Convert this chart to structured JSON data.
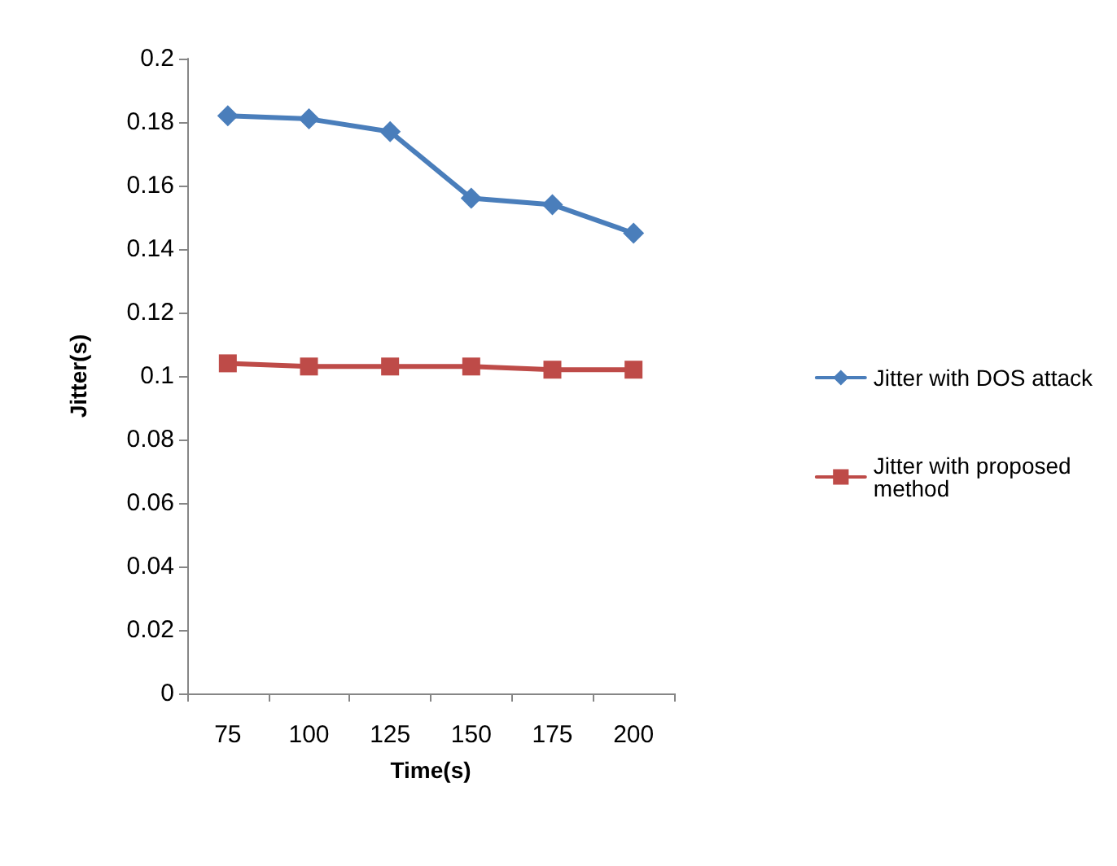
{
  "chart_data": {
    "type": "line",
    "xlabel": "Time(s)",
    "ylabel": "Jitter(s)",
    "categories": [
      "75",
      "100",
      "125",
      "150",
      "175",
      "200"
    ],
    "series": [
      {
        "name": "Jitter with DOS attack",
        "color": "#4a7ebb",
        "marker": "diamond",
        "values": [
          0.182,
          0.181,
          0.177,
          0.156,
          0.154,
          0.145
        ]
      },
      {
        "name": "Jitter with proposed method",
        "color": "#be4b48",
        "marker": "square",
        "values": [
          0.104,
          0.103,
          0.103,
          0.103,
          0.102,
          0.102
        ]
      }
    ],
    "ylim": [
      0,
      0.2
    ],
    "yticks": [
      0,
      0.02,
      0.04,
      0.06,
      0.08,
      0.1,
      0.12,
      0.14,
      0.16,
      0.18,
      0.2
    ],
    "grid": false,
    "legend": "right",
    "line_style": "solid"
  }
}
